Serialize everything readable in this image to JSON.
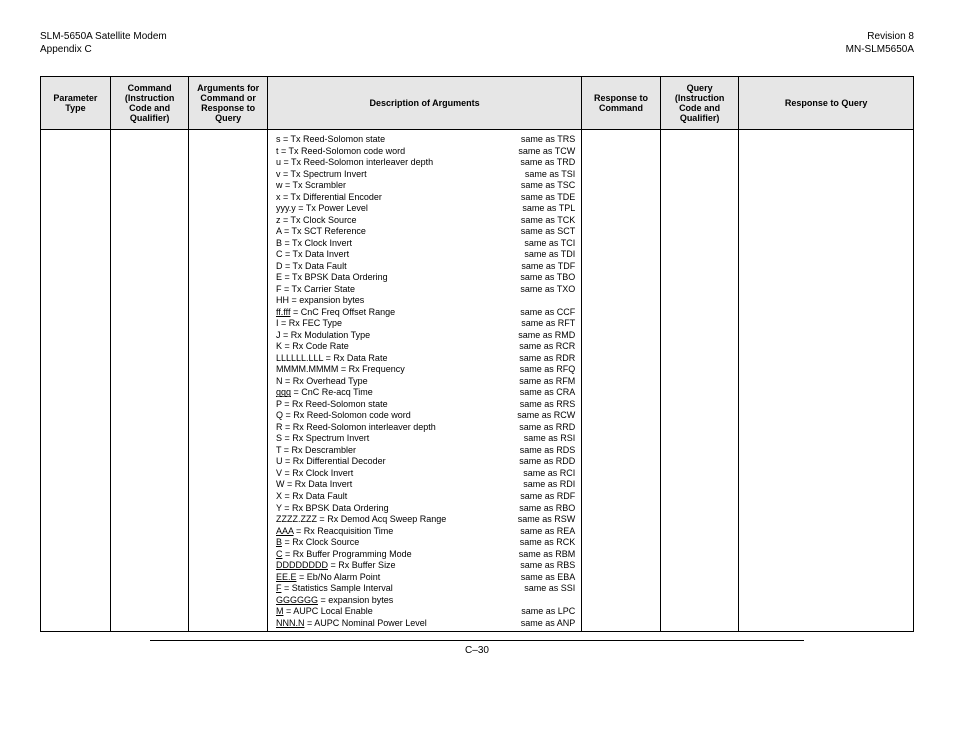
{
  "header": {
    "left1": "SLM-5650A Satellite Modem",
    "left2": "Appendix C",
    "right1": "Revision 8",
    "right2": "MN-SLM5650A"
  },
  "columns": {
    "c1": "Parameter Type",
    "c2": "Command (Instruction Code and Qualifier)",
    "c3": "Arguments for Command or Response to Query",
    "c4": "Description of Arguments",
    "c5": "Response to Command",
    "c6": "Query (Instruction Code and Qualifier)",
    "c7": "Response to Query"
  },
  "col_widths": [
    "8%",
    "9%",
    "9%",
    "36%",
    "9%",
    "9%",
    "20%"
  ],
  "rows": [
    {
      "l": "s = Tx Reed-Solomon state",
      "r": "same as TRS"
    },
    {
      "l": "t = Tx Reed-Solomon code word",
      "r": "same as TCW"
    },
    {
      "l": "u = Tx Reed-Solomon interleaver depth",
      "r": "same as TRD"
    },
    {
      "l": "v = Tx Spectrum Invert",
      "r": "same as TSI"
    },
    {
      "l": "w = Tx Scrambler",
      "r": "same as TSC"
    },
    {
      "l": "x = Tx Differential Encoder",
      "r": "same as TDE"
    },
    {
      "l": "yyy.y = Tx Power Level",
      "r": "same as TPL"
    },
    {
      "l": "z = Tx Clock Source",
      "r": "same as TCK"
    },
    {
      "l": "A = Tx SCT Reference",
      "r": "same as SCT"
    },
    {
      "l": "B = Tx Clock Invert",
      "r": "same as TCI"
    },
    {
      "l": "C = Tx Data Invert",
      "r": "same as TDI"
    },
    {
      "l": "D = Tx Data Fault",
      "r": "same as TDF"
    },
    {
      "l": "E = Tx BPSK Data Ordering",
      "r": "same as TBO"
    },
    {
      "l": "F = Tx Carrier State",
      "r": "same as TXO"
    },
    {
      "l": "HH = expansion bytes",
      "r": ""
    },
    {
      "l": "ff.fff",
      "l2": " = CnC Freq Offset Range",
      "u": true,
      "r": "same as CCF"
    },
    {
      "l": "I = Rx FEC Type",
      "r": "same as RFT"
    },
    {
      "l": "J = Rx Modulation Type",
      "r": "same as RMD"
    },
    {
      "l": "K = Rx Code Rate",
      "r": "same as RCR"
    },
    {
      "l": "LLLLLL.LLL = Rx Data Rate",
      "r": "same as RDR"
    },
    {
      "l": "MMMM.MMMM = Rx Frequency",
      "r": "same as RFQ"
    },
    {
      "l": "N = Rx Overhead Type",
      "r": "same as RFM"
    },
    {
      "l": "ggg",
      "l2": " = CnC Re-acq Time",
      "u": true,
      "r": "same as CRA"
    },
    {
      "l": "P = Rx Reed-Solomon state",
      "r": "same as RRS"
    },
    {
      "l": "Q = Rx Reed-Solomon code word",
      "r": "same as RCW"
    },
    {
      "l": "R = Rx Reed-Solomon interleaver depth",
      "r": "same as RRD"
    },
    {
      "l": "S = Rx Spectrum Invert",
      "r": "same as RSI"
    },
    {
      "l": "T = Rx Descrambler",
      "r": "same as RDS"
    },
    {
      "l": "U = Rx Differential Decoder",
      "r": "same as RDD"
    },
    {
      "l": "V = Rx Clock Invert",
      "r": "same as RCI"
    },
    {
      "l": "W = Rx Data Invert",
      "r": "same as RDI"
    },
    {
      "l": "X = Rx Data Fault",
      "r": "same as RDF"
    },
    {
      "l": "Y = Rx BPSK Data Ordering",
      "r": "same as RBO"
    },
    {
      "l": "ZZZZ.ZZZ = Rx Demod Acq Sweep Range",
      "r": "same as RSW"
    },
    {
      "l": "AAA",
      "l2": " = Rx Reacquisition Time",
      "u": true,
      "r": "same as REA"
    },
    {
      "l": "B",
      "l2": " = Rx Clock Source",
      "u": true,
      "r": "same as RCK"
    },
    {
      "l": "C",
      "l2": " = Rx Buffer Programming Mode",
      "u": true,
      "r": "same as RBM"
    },
    {
      "l": "DDDDDDDD",
      "l2": " = Rx Buffer Size",
      "u": true,
      "r": "same as RBS"
    },
    {
      "l": "EE.E",
      "l2": " = Eb/No Alarm Point",
      "u": true,
      "r": "same as EBA"
    },
    {
      "l": "F",
      "l2": " = Statistics Sample Interval",
      "u": true,
      "r": "same as SSI"
    },
    {
      "l": "GGGGGG",
      "l2": " = expansion bytes",
      "u": true,
      "r": ""
    },
    {
      "l": "M",
      "l2": " = AUPC Local Enable",
      "u": true,
      "r": "same as LPC"
    },
    {
      "l": "NNN.N",
      "l2": " = AUPC Nominal Power Level",
      "u": true,
      "r": "same as ANP"
    }
  ],
  "page_no": "C–30"
}
